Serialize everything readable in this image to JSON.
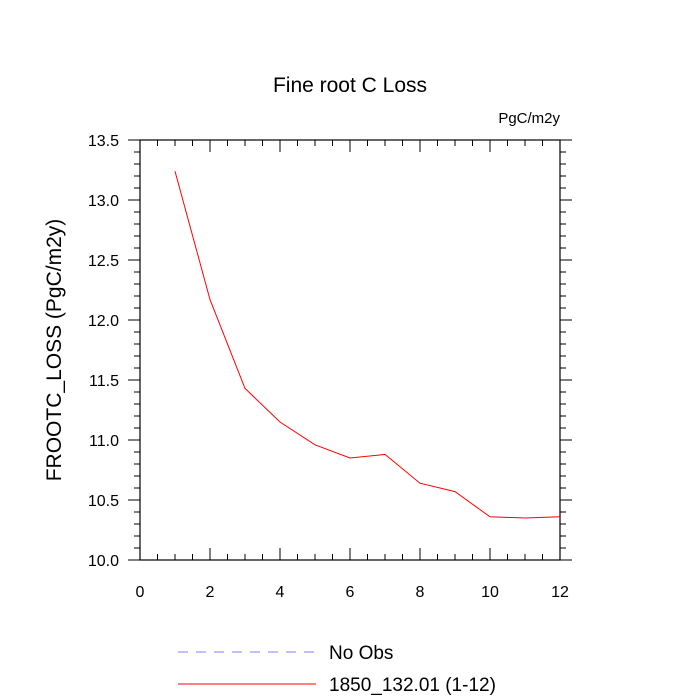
{
  "chart_data": {
    "type": "line",
    "title": "Fine root C Loss",
    "units_label": "PgC/m2y",
    "xlabel": "",
    "ylabel": "FROOTC_LOSS  (PgC/m2y)",
    "xlim": [
      0,
      12
    ],
    "ylim": [
      10.0,
      13.5
    ],
    "x_ticks": [
      "0",
      "2",
      "4",
      "6",
      "8",
      "10",
      "12"
    ],
    "y_ticks": [
      "10.0",
      "10.5",
      "11.0",
      "11.5",
      "12.0",
      "12.5",
      "13.0",
      "13.5"
    ],
    "grid": false,
    "legend_position": "bottom",
    "series": [
      {
        "name": "1850_132.01 (1-12)",
        "color": "#ff0000",
        "dash": "solid",
        "x": [
          1,
          2,
          3,
          4,
          5,
          6,
          7,
          8,
          9,
          10,
          11,
          12
        ],
        "values": [
          13.24,
          12.17,
          11.43,
          11.15,
          10.96,
          10.85,
          10.88,
          10.64,
          10.57,
          10.36,
          10.35,
          10.36
        ]
      }
    ],
    "legend": [
      {
        "label": "No Obs",
        "color": "#8080ff",
        "dash": "dashed"
      },
      {
        "label": "1850_132.01 (1-12)",
        "color": "#ff0000",
        "dash": "solid"
      }
    ]
  }
}
